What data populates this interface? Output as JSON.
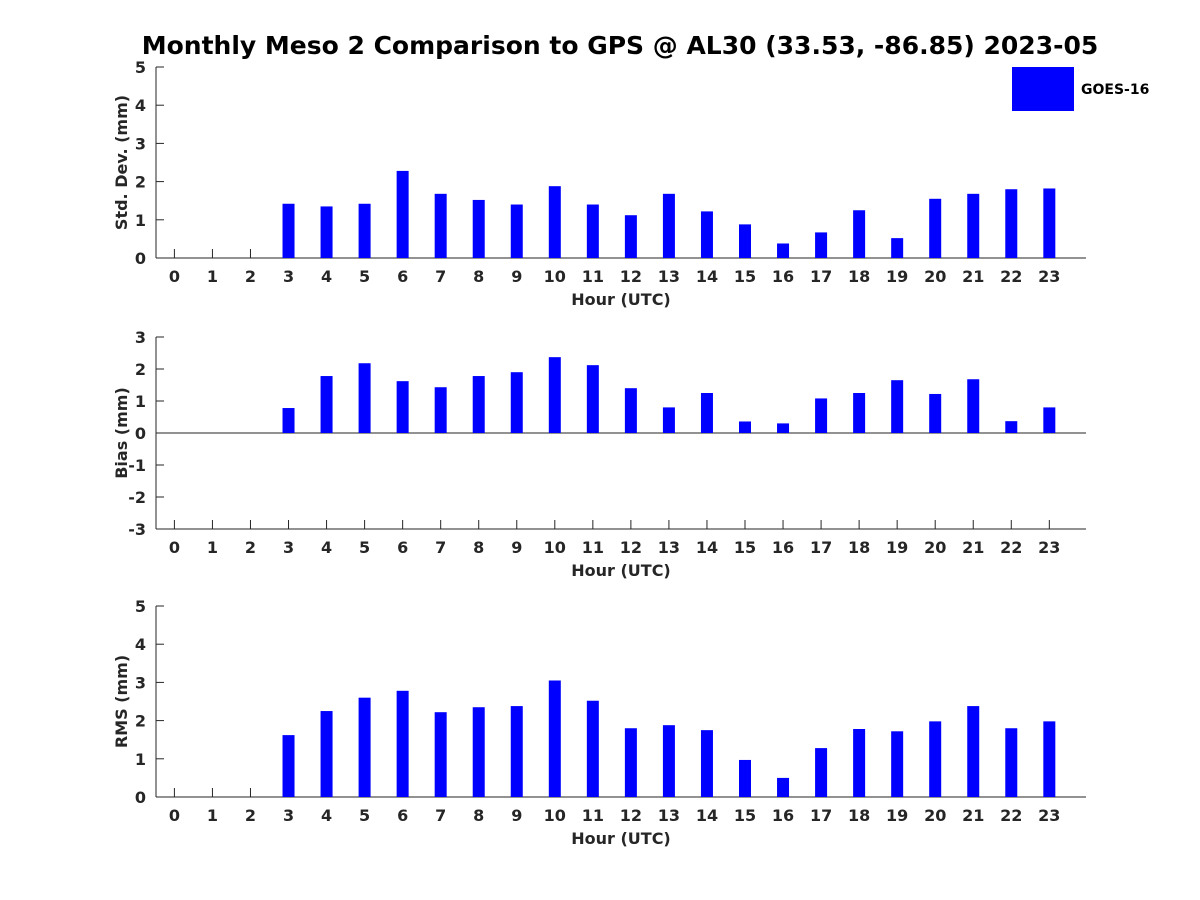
{
  "title": "Monthly Meso 2 Comparison to GPS @ AL30 (33.53, -86.85) 2023-05",
  "legend": {
    "label": "GOES-16",
    "color": "#0000ff",
    "placement": "top-right"
  },
  "chart_data": [
    {
      "type": "bar",
      "xlabel": "Hour (UTC)",
      "ylabel": "Std. Dev. (mm)",
      "ylim": [
        0,
        5
      ],
      "yticks": [
        "0",
        "1",
        "2",
        "3",
        "4",
        "5"
      ],
      "categories": [
        "0",
        "1",
        "2",
        "3",
        "4",
        "5",
        "6",
        "7",
        "8",
        "9",
        "10",
        "11",
        "12",
        "13",
        "14",
        "15",
        "16",
        "17",
        "18",
        "19",
        "20",
        "21",
        "22",
        "23"
      ],
      "series": [
        {
          "name": "GOES-16",
          "color": "#0000ff",
          "values": [
            null,
            null,
            null,
            1.42,
            1.35,
            1.42,
            2.28,
            1.68,
            1.52,
            1.4,
            1.88,
            1.4,
            1.12,
            1.68,
            1.22,
            0.88,
            0.38,
            0.67,
            1.25,
            0.52,
            1.55,
            1.68,
            1.8,
            1.82
          ]
        }
      ]
    },
    {
      "type": "bar",
      "xlabel": "Hour (UTC)",
      "ylabel": "Bias (mm)",
      "ylim": [
        -3,
        3
      ],
      "yticks": [
        "-3",
        "-2",
        "-1",
        "0",
        "1",
        "2",
        "3"
      ],
      "categories": [
        "0",
        "1",
        "2",
        "3",
        "4",
        "5",
        "6",
        "7",
        "8",
        "9",
        "10",
        "11",
        "12",
        "13",
        "14",
        "15",
        "16",
        "17",
        "18",
        "19",
        "20",
        "21",
        "22",
        "23"
      ],
      "series": [
        {
          "name": "GOES-16",
          "color": "#0000ff",
          "values": [
            null,
            null,
            null,
            0.78,
            1.78,
            2.18,
            1.62,
            1.43,
            1.78,
            1.9,
            2.37,
            2.12,
            1.4,
            0.8,
            1.25,
            0.36,
            0.3,
            1.08,
            1.25,
            1.65,
            1.22,
            1.68,
            0.37,
            0.8
          ]
        }
      ]
    },
    {
      "type": "bar",
      "xlabel": "Hour (UTC)",
      "ylabel": "RMS (mm)",
      "ylim": [
        0,
        5
      ],
      "yticks": [
        "0",
        "1",
        "2",
        "3",
        "4",
        "5"
      ],
      "categories": [
        "0",
        "1",
        "2",
        "3",
        "4",
        "5",
        "6",
        "7",
        "8",
        "9",
        "10",
        "11",
        "12",
        "13",
        "14",
        "15",
        "16",
        "17",
        "18",
        "19",
        "20",
        "21",
        "22",
        "23"
      ],
      "series": [
        {
          "name": "GOES-16",
          "color": "#0000ff",
          "values": [
            null,
            null,
            null,
            1.62,
            2.25,
            2.6,
            2.78,
            2.22,
            2.35,
            2.38,
            3.05,
            2.52,
            1.8,
            1.88,
            1.75,
            0.97,
            0.5,
            1.28,
            1.78,
            1.72,
            1.98,
            2.38,
            1.8,
            1.98
          ]
        }
      ]
    }
  ]
}
